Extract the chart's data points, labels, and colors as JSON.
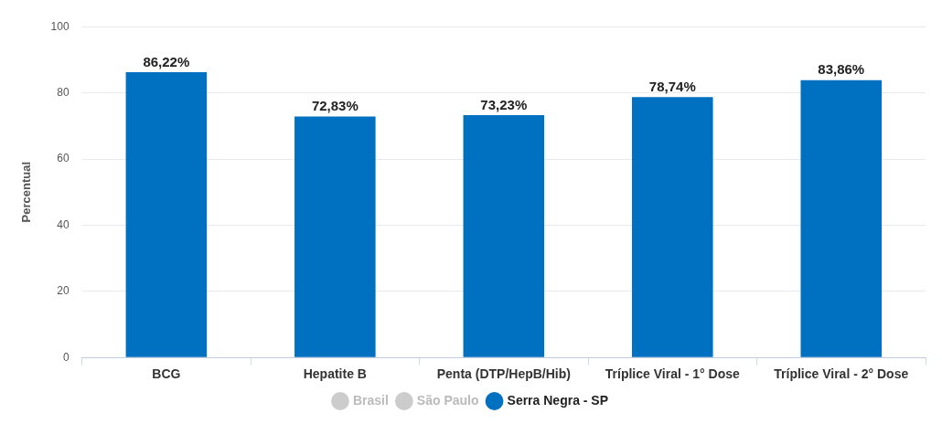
{
  "chart_data": {
    "type": "bar",
    "ylabel": "Percentual",
    "categories": [
      "BCG",
      "Hepatite B",
      "Penta (DTP/HepB/Hib)",
      "Tríplice Viral - 1° Dose",
      "Tríplice Viral - 2° Dose"
    ],
    "series": [
      {
        "name": "Brasil",
        "color": "#cccccc",
        "values": [
          null,
          null,
          null,
          null,
          null
        ]
      },
      {
        "name": "São Paulo",
        "color": "#cccccc",
        "values": [
          null,
          null,
          null,
          null,
          null
        ]
      },
      {
        "name": "Serra Negra - SP",
        "color": "#0070c0",
        "values": [
          86.22,
          72.83,
          73.23,
          78.74,
          83.86
        ],
        "value_labels": [
          "86,22%",
          "72,83%",
          "73,23%",
          "78,74%",
          "83,86%"
        ]
      }
    ],
    "ylim": [
      0,
      100
    ],
    "yticks": [
      0,
      20,
      40,
      60,
      80,
      100
    ],
    "grid": "y",
    "legend": "bottom"
  }
}
